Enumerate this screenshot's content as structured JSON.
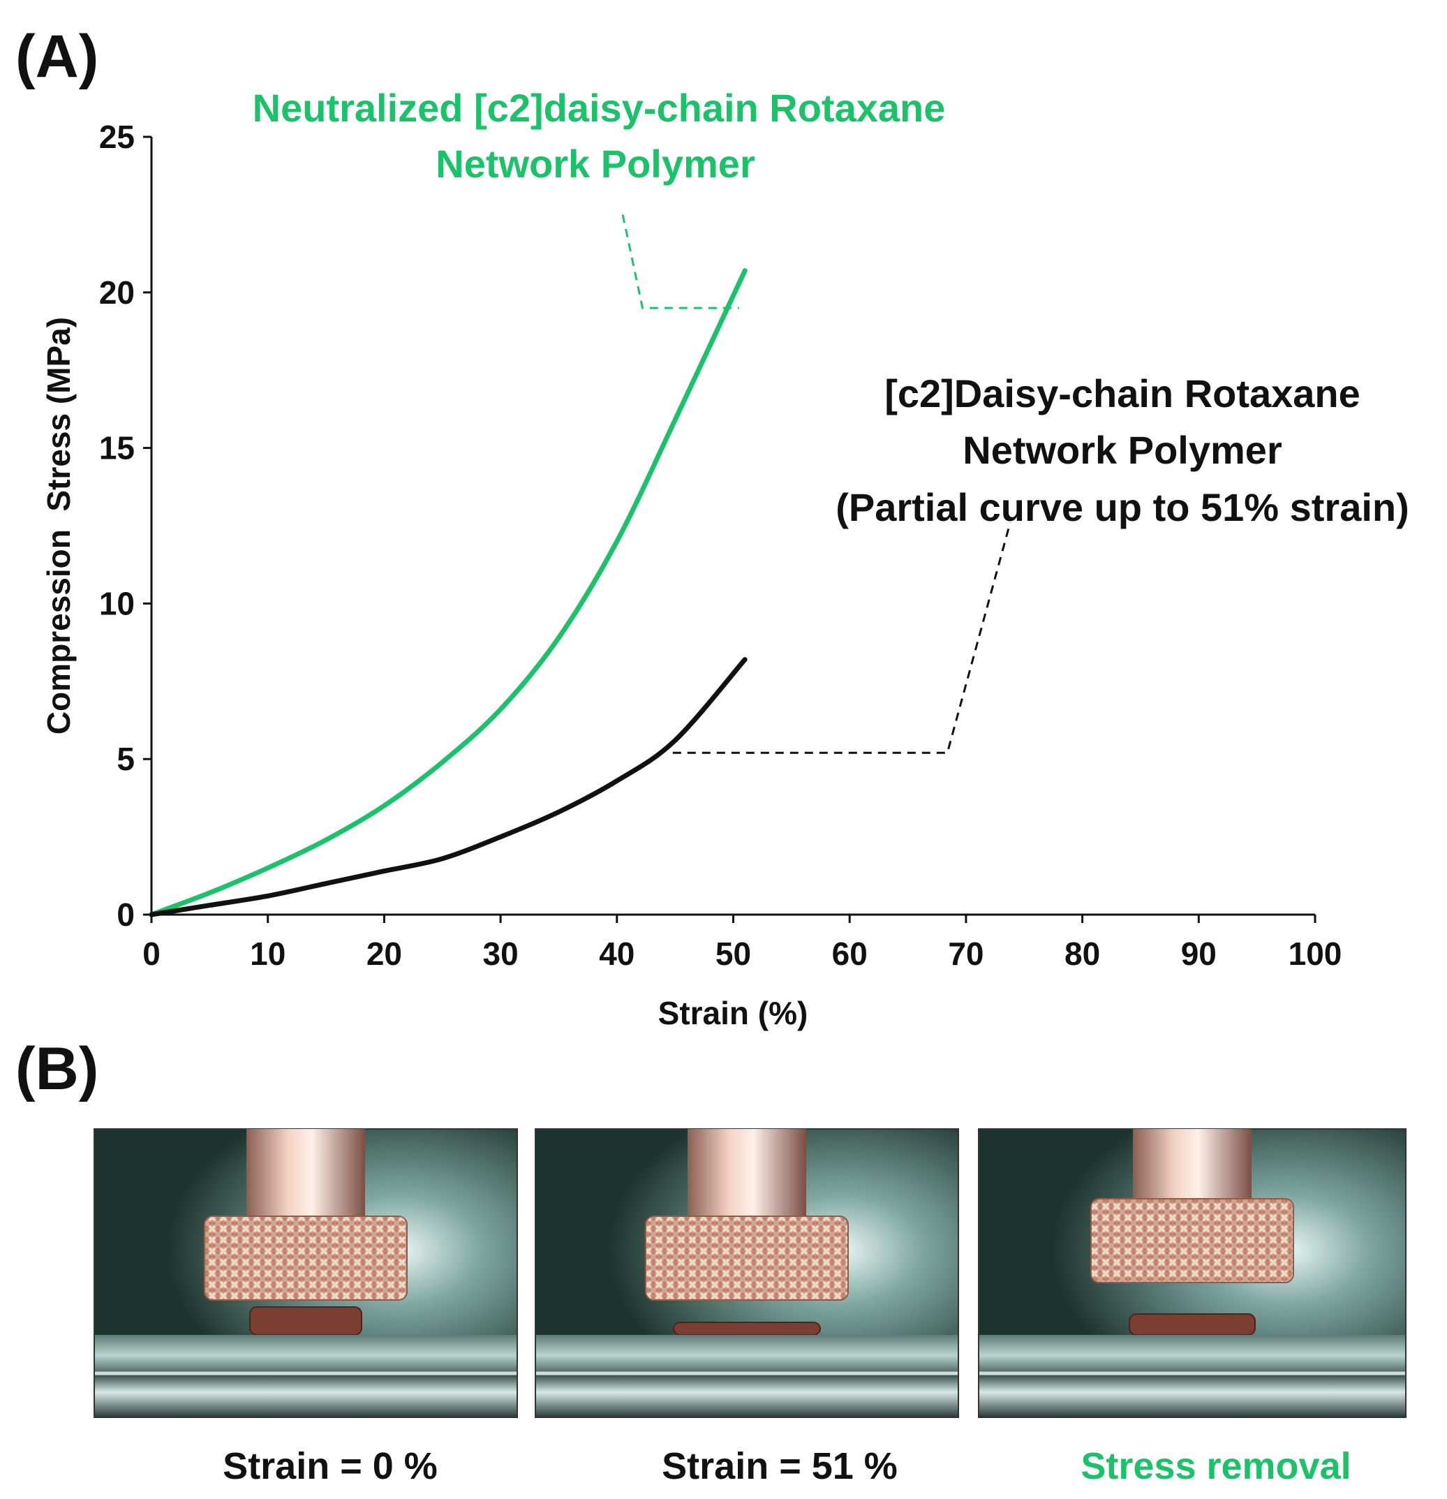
{
  "panel_a_label": "(A)",
  "panel_b_label": "(B)",
  "chart_data": {
    "type": "line",
    "title": "",
    "xlabel": "Strain (%)",
    "ylabel": "Compression  Stress (MPa)",
    "xlim": [
      0,
      100
    ],
    "ylim": [
      0,
      25
    ],
    "xticks": [
      0,
      10,
      20,
      30,
      40,
      50,
      60,
      70,
      80,
      90,
      100
    ],
    "yticks": [
      0,
      5,
      10,
      15,
      20,
      25
    ],
    "grid": false,
    "legend": "none",
    "series": [
      {
        "name": "Neutralized [c2]daisy-chain Rotaxane Network Polymer",
        "color": "#1cc26a",
        "x": [
          0,
          5,
          10,
          15,
          20,
          25,
          30,
          35,
          40,
          45,
          51
        ],
        "y": [
          0,
          0.7,
          1.5,
          2.4,
          3.5,
          4.9,
          6.6,
          8.9,
          12.0,
          15.9,
          20.7
        ]
      },
      {
        "name": "[c2]Daisy-chain Rotaxane Network Polymer (Partial curve up to 51% strain)",
        "color": "#111111",
        "x": [
          0,
          5,
          10,
          15,
          20,
          25,
          30,
          35,
          40,
          45,
          51
        ],
        "y": [
          0,
          0.3,
          0.6,
          1.0,
          1.4,
          1.8,
          2.5,
          3.3,
          4.3,
          5.6,
          8.2
        ]
      }
    ],
    "annotations": [
      {
        "lines": [
          "Neutralized [c2]daisy-chain Rotaxane",
          "Network Polymer"
        ],
        "color": "#1cc26a",
        "leader": [
          [
            40.5,
            22.5
          ],
          [
            42.2,
            19.5
          ],
          [
            50.5,
            19.5
          ]
        ]
      },
      {
        "lines": [
          "[c2]Daisy-chain Rotaxane",
          "Network Polymer",
          "(Partial curve up to 51% strain)"
        ],
        "color": "#111111",
        "leader": [
          [
            44.8,
            5.2
          ],
          [
            68.4,
            5.2
          ],
          [
            73.8,
            12.6
          ]
        ]
      }
    ]
  },
  "photos": [
    {
      "caption": "Strain = 0 %",
      "caption_color": "#111111",
      "state": "uncompressed"
    },
    {
      "caption": "Strain = 51 %",
      "caption_color": "#111111",
      "state": "compressed"
    },
    {
      "caption": "Stress removal",
      "caption_color": "#1cc26a",
      "state": "released"
    }
  ]
}
